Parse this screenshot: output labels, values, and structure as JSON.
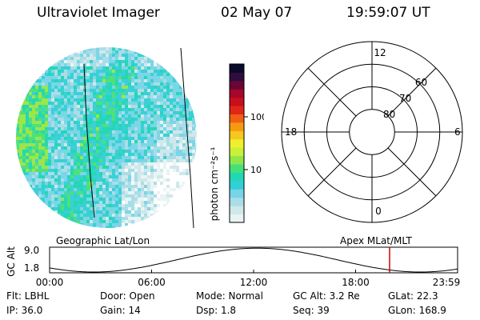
{
  "header": {
    "title": "Ultraviolet Imager",
    "date": "02 May 07",
    "time": "19:59:07 UT"
  },
  "colorbar": {
    "label": "photon cm⁻²s⁻¹",
    "ticks": [
      {
        "label": "100",
        "value": 100
      },
      {
        "label": "10",
        "value": 10
      }
    ],
    "colors": [
      "#e8f4f4",
      "#cfe8ea",
      "#a9dde8",
      "#77d4e6",
      "#33cfd6",
      "#22d7b4",
      "#44e07a",
      "#8ee64a",
      "#c8ef3a",
      "#f0ef2e",
      "#f6c71e",
      "#f59a10",
      "#f16012",
      "#e12617",
      "#c80f1c",
      "#a4082a",
      "#6a0636",
      "#2f0d3c",
      "#0a0a2a"
    ]
  },
  "polar_plot": {
    "mlt_labels": [
      {
        "label": "12",
        "angle": 0
      },
      {
        "label": "6",
        "angle": 90
      },
      {
        "label": "0",
        "angle": 180
      },
      {
        "label": "18",
        "angle": 270
      }
    ],
    "lat_labels": [
      {
        "label": "60",
        "lat": 60
      },
      {
        "label": "70",
        "lat": 70
      },
      {
        "label": "80",
        "lat": 80
      }
    ]
  },
  "timeline": {
    "left_title": "Geographic Lat/Lon",
    "right_title": "Apex MLat/MLT",
    "ylabel": "GC Alt",
    "y_ticks": [
      "9.0",
      "1.8"
    ],
    "x_ticks": [
      "00:00",
      "06:00",
      "12:00",
      "18:00",
      "23:59"
    ],
    "marker_hour": 20.0,
    "marker_color": "#d00000"
  },
  "info": {
    "flt": "Flt: LBHL",
    "ip": "IP: 36.0",
    "door": "Door: Open",
    "gain": "Gain: 14",
    "mode": "Mode: Normal",
    "dsp": "Dsp:    1.8",
    "gc_alt": "GC Alt: 3.2 Re",
    "seq": "Seq: 39",
    "glat": "GLat:  22.3",
    "glon": "GLon: 168.9"
  }
}
